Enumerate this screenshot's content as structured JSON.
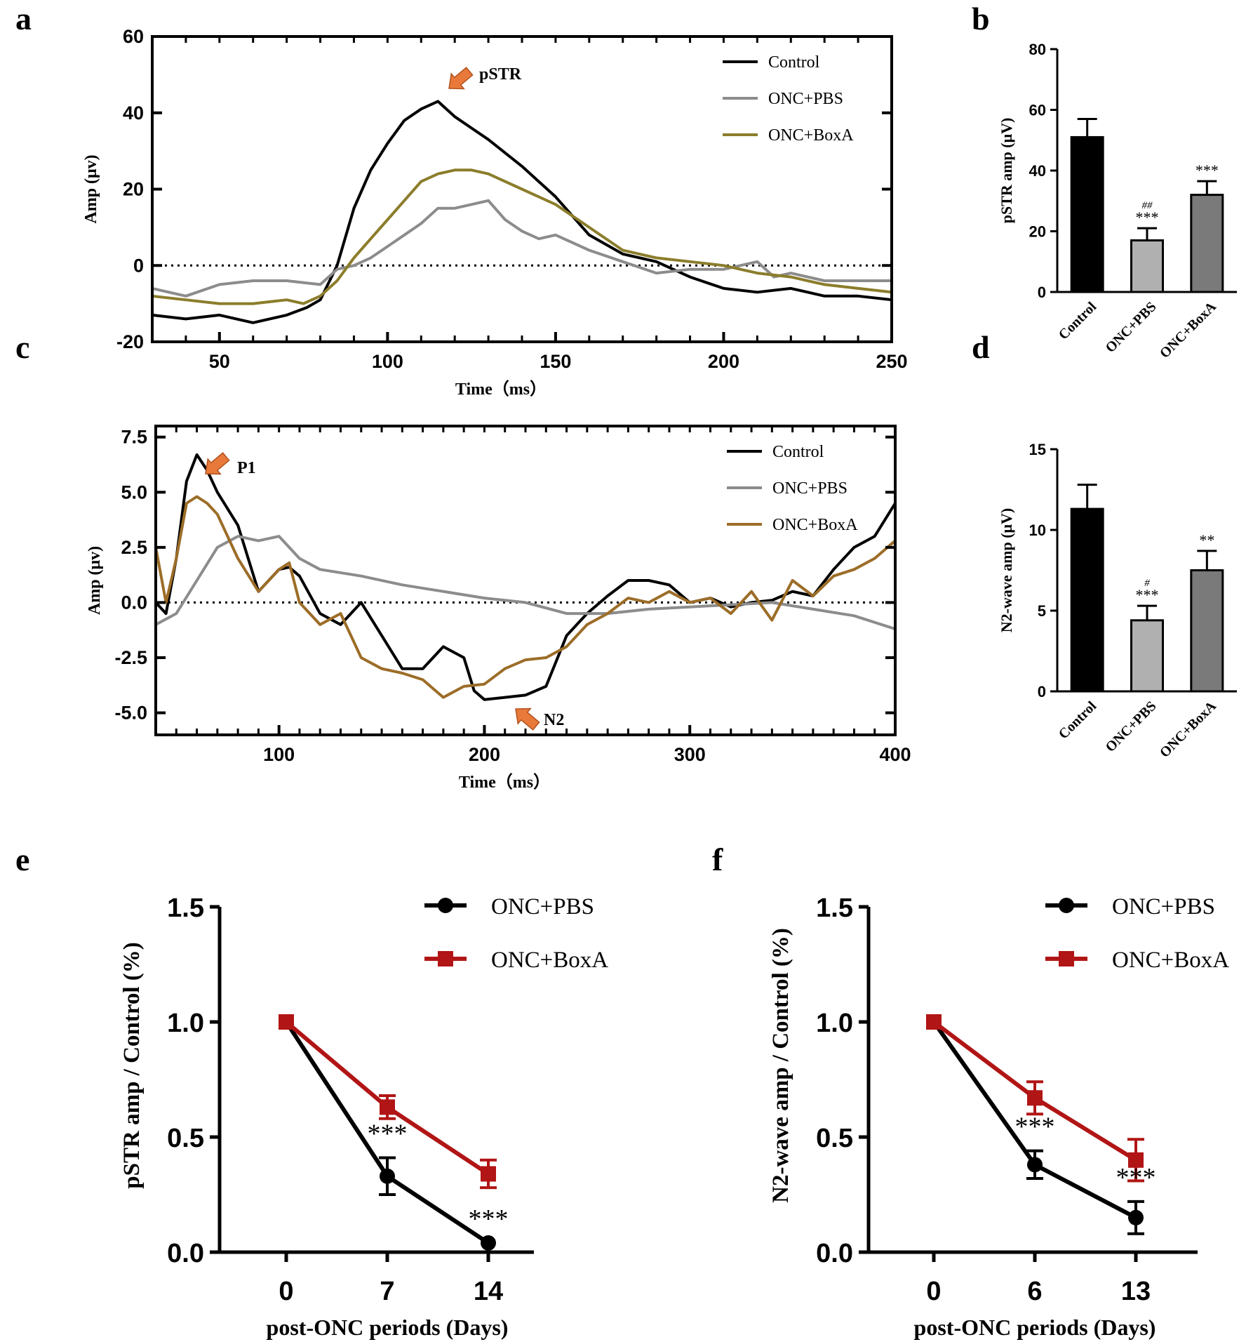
{
  "panel_labels": [
    "a",
    "b",
    "c",
    "d",
    "e",
    "f"
  ],
  "chart_data": [
    {
      "id": "a",
      "type": "line",
      "xlabel": "Time（ms）",
      "ylabel": "Amp (μv)",
      "xlim": [
        30,
        250
      ],
      "ylim": [
        -20,
        60
      ],
      "xticks": [
        50,
        100,
        150,
        200,
        250
      ],
      "yticks": [
        -20,
        0,
        20,
        40,
        60
      ],
      "annotation": "pSTR",
      "series": [
        {
          "name": "Control",
          "color": "#000000",
          "x": [
            30,
            40,
            50,
            60,
            70,
            76,
            80,
            85,
            90,
            95,
            100,
            105,
            110,
            115,
            120,
            125,
            130,
            140,
            150,
            160,
            170,
            180,
            190,
            200,
            210,
            220,
            230,
            240,
            250
          ],
          "y": [
            -13,
            -14,
            -13,
            -15,
            -13,
            -11,
            -9,
            0,
            15,
            25,
            32,
            38,
            41,
            43,
            39,
            36,
            33,
            26,
            18,
            8,
            3,
            1,
            -3,
            -6,
            -7,
            -6,
            -8,
            -8,
            -9
          ]
        },
        {
          "name": "ONC+PBS",
          "color": "#8c8c8c",
          "x": [
            30,
            40,
            50,
            60,
            70,
            80,
            85,
            90,
            95,
            100,
            105,
            110,
            115,
            120,
            125,
            130,
            135,
            140,
            145,
            150,
            160,
            170,
            180,
            190,
            200,
            210,
            215,
            220,
            230,
            240,
            250
          ],
          "y": [
            -6,
            -8,
            -5,
            -4,
            -4,
            -5,
            -1,
            0,
            2,
            5,
            8,
            11,
            15,
            15,
            16,
            17,
            12,
            9,
            7,
            8,
            4,
            1,
            -2,
            -1,
            -1,
            1,
            -3,
            -2,
            -4,
            -4,
            -4
          ]
        },
        {
          "name": "ONC+BoxA",
          "color": "#8b7d2b",
          "x": [
            30,
            40,
            50,
            60,
            70,
            75,
            80,
            85,
            90,
            95,
            100,
            105,
            110,
            115,
            120,
            125,
            130,
            140,
            150,
            160,
            170,
            180,
            190,
            200,
            210,
            220,
            230,
            240,
            250
          ],
          "y": [
            -8,
            -9,
            -10,
            -10,
            -9,
            -10,
            -8,
            -4,
            2,
            7,
            12,
            17,
            22,
            24,
            25,
            25,
            24,
            20,
            16,
            10,
            4,
            2,
            1,
            0,
            -2,
            -3,
            -5,
            -6,
            -7
          ]
        }
      ]
    },
    {
      "id": "b",
      "type": "bar",
      "ylabel": "pSTR amp (μV)",
      "ylim": [
        0,
        80
      ],
      "yticks": [
        0,
        20,
        40,
        60,
        80
      ],
      "categories": [
        "Control",
        "ONC+PBS",
        "ONC+BoxA"
      ],
      "values": [
        51,
        17,
        32
      ],
      "errors": [
        6,
        4,
        4.5
      ],
      "fills": [
        "#000000",
        "#b0b0b0",
        "#7a7a7a"
      ],
      "labels": [
        "",
        "***",
        "***"
      ],
      "labels_hash": [
        "",
        "##",
        ""
      ]
    },
    {
      "id": "c",
      "type": "line",
      "xlabel": "Time（ms）",
      "ylabel": "Amp (μv)",
      "xlim": [
        40,
        400
      ],
      "ylim": [
        -6,
        8
      ],
      "xticks": [
        100,
        200,
        300,
        400
      ],
      "yticks": [
        -5.0,
        -2.5,
        0.0,
        2.5,
        5.0,
        7.5
      ],
      "annotations": [
        "P1",
        "N2"
      ],
      "series": [
        {
          "name": "Control",
          "color": "#000000",
          "x": [
            40,
            45,
            50,
            55,
            60,
            65,
            70,
            80,
            90,
            100,
            105,
            110,
            120,
            130,
            140,
            150,
            160,
            170,
            180,
            190,
            195,
            200,
            210,
            220,
            230,
            240,
            250,
            260,
            270,
            280,
            290,
            300,
            310,
            320,
            330,
            340,
            350,
            360,
            370,
            380,
            390,
            400
          ],
          "y": [
            0,
            -0.5,
            2,
            5.5,
            6.7,
            6,
            5,
            3.5,
            0.5,
            1.5,
            1.6,
            1.2,
            -0.5,
            -1,
            0,
            -1.5,
            -3,
            -3,
            -2,
            -2.5,
            -4,
            -4.4,
            -4.3,
            -4.2,
            -3.8,
            -1.5,
            -0.5,
            0.3,
            1,
            1,
            0.8,
            0,
            0.2,
            -0.2,
            0,
            0.1,
            0.5,
            0.3,
            1.5,
            2.5,
            3,
            4.5
          ]
        },
        {
          "name": "ONC+PBS",
          "color": "#8c8c8c",
          "x": [
            40,
            50,
            60,
            70,
            80,
            90,
            100,
            110,
            120,
            140,
            160,
            180,
            200,
            220,
            240,
            260,
            280,
            300,
            320,
            340,
            360,
            380,
            400
          ],
          "y": [
            -1,
            -0.5,
            1,
            2.5,
            3,
            2.8,
            3,
            2,
            1.5,
            1.2,
            0.8,
            0.5,
            0.2,
            0,
            -0.5,
            -0.5,
            -0.3,
            -0.2,
            -0.1,
            0,
            -0.3,
            -0.6,
            -1.2
          ]
        },
        {
          "name": "ONC+BoxA",
          "color": "#9c6d28",
          "x": [
            40,
            45,
            50,
            55,
            60,
            65,
            70,
            80,
            90,
            100,
            105,
            110,
            120,
            130,
            140,
            150,
            160,
            170,
            180,
            190,
            200,
            210,
            220,
            230,
            240,
            250,
            260,
            270,
            280,
            290,
            300,
            310,
            320,
            330,
            340,
            350,
            360,
            370,
            380,
            390,
            400
          ],
          "y": [
            2.5,
            0,
            2,
            4.5,
            4.8,
            4.5,
            4,
            2,
            0.5,
            1.5,
            1.8,
            0,
            -1,
            -0.5,
            -2.5,
            -3,
            -3.2,
            -3.5,
            -4.3,
            -3.8,
            -3.7,
            -3,
            -2.6,
            -2.5,
            -2,
            -1,
            -0.5,
            0.2,
            0,
            0.5,
            0,
            0.2,
            -0.5,
            0.5,
            -0.8,
            1,
            0.3,
            1.2,
            1.5,
            2,
            2.8
          ]
        }
      ]
    },
    {
      "id": "d",
      "type": "bar",
      "ylabel": "N2-wave amp (μV)",
      "ylim": [
        0,
        15
      ],
      "yticks": [
        0,
        5,
        10,
        15
      ],
      "categories": [
        "Control",
        "ONC+PBS",
        "ONC+BoxA"
      ],
      "values": [
        11.3,
        4.4,
        7.5
      ],
      "errors": [
        1.5,
        0.9,
        1.2
      ],
      "fills": [
        "#000000",
        "#b0b0b0",
        "#7a7a7a"
      ],
      "labels": [
        "",
        "***",
        "**"
      ],
      "labels_hash": [
        "",
        "#",
        ""
      ]
    },
    {
      "id": "e",
      "type": "line",
      "xlabel": "post-ONC periods (Days)",
      "ylabel": "pSTR amp / Control (%)",
      "ylim": [
        0,
        1.5
      ],
      "yticks": [
        0.0,
        0.5,
        1.0,
        1.5
      ],
      "categories": [
        "0",
        "7",
        "14"
      ],
      "series": [
        {
          "name": "ONC+PBS",
          "color": "#000000",
          "marker": "circle",
          "values": [
            1.0,
            0.33,
            0.04
          ],
          "errors": [
            0,
            0.08,
            0
          ]
        },
        {
          "name": "ONC+BoxA",
          "color": "#b11515",
          "marker": "square",
          "values": [
            1.0,
            0.63,
            0.34
          ],
          "errors": [
            0,
            0.05,
            0.06
          ]
        }
      ],
      "labels": [
        "",
        "***",
        "***"
      ]
    },
    {
      "id": "f",
      "type": "line",
      "xlabel": "post-ONC periods (Days)",
      "ylabel": "N2-wave amp / Control (%)",
      "ylim": [
        0,
        1.5
      ],
      "yticks": [
        0.0,
        0.5,
        1.0,
        1.5
      ],
      "categories": [
        "0",
        "6",
        "13"
      ],
      "series": [
        {
          "name": "ONC+PBS",
          "color": "#000000",
          "marker": "circle",
          "values": [
            1.0,
            0.38,
            0.15
          ],
          "errors": [
            0,
            0.06,
            0.07
          ]
        },
        {
          "name": "ONC+BoxA",
          "color": "#b11515",
          "marker": "square",
          "values": [
            1.0,
            0.67,
            0.4
          ],
          "errors": [
            0,
            0.07,
            0.09
          ]
        }
      ],
      "labels": [
        "",
        "***",
        "***"
      ]
    }
  ]
}
